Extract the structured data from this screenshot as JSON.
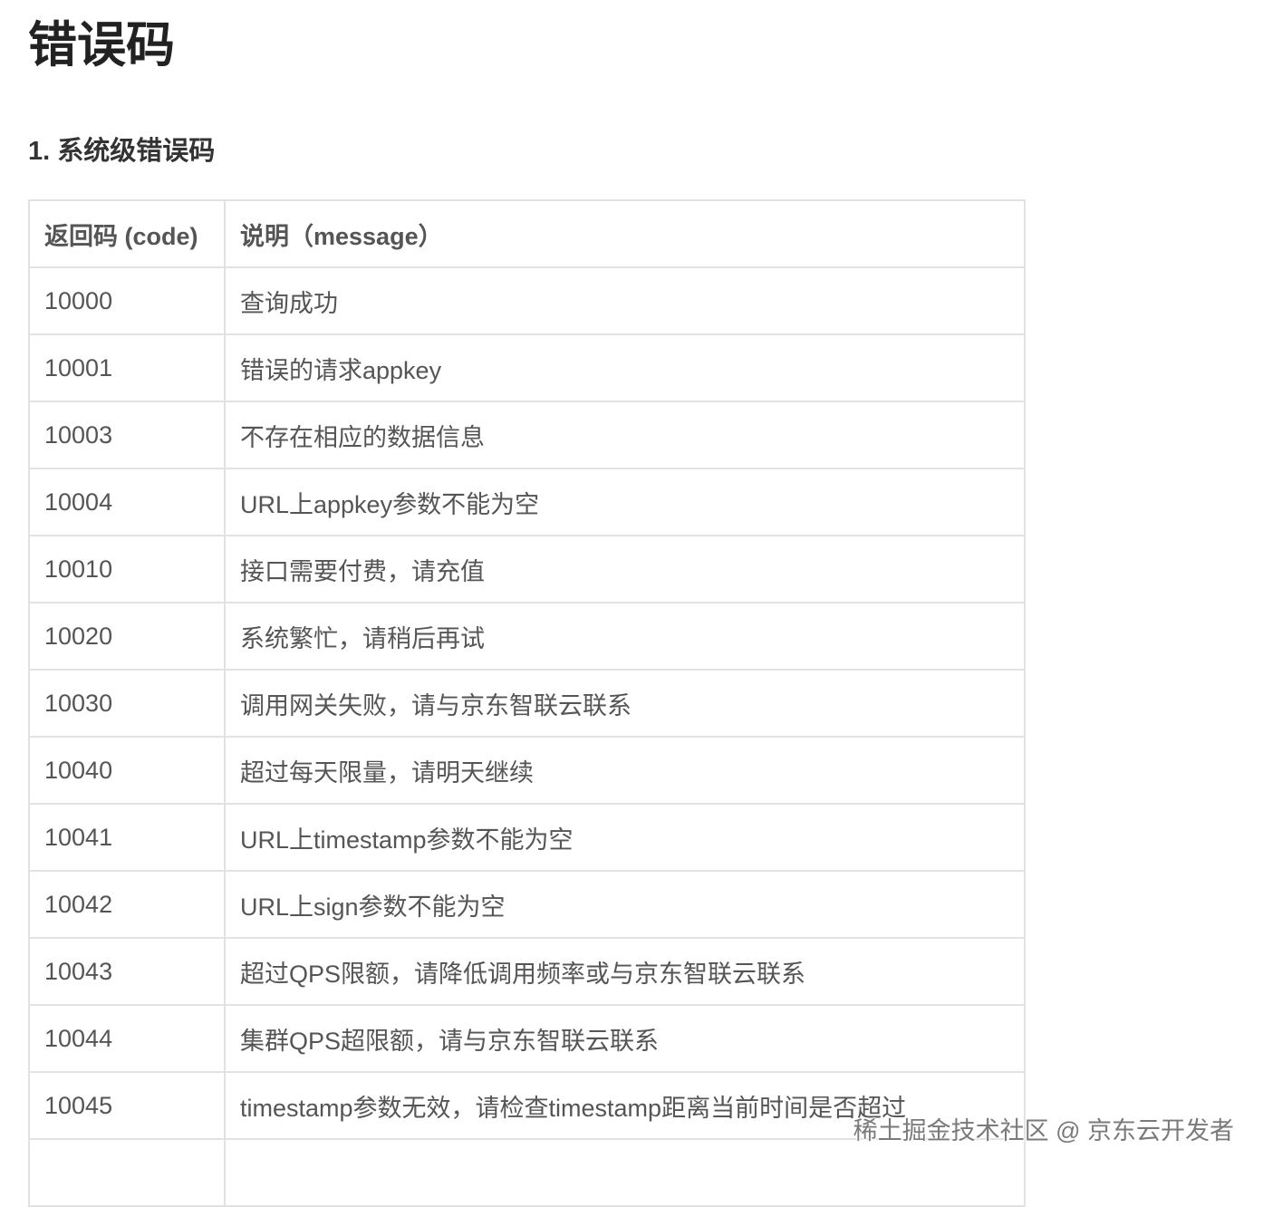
{
  "title": "错误码",
  "section_title": "1. 系统级错误码",
  "table": {
    "headers": [
      "返回码 (code)",
      "说明（message）"
    ],
    "rows": [
      {
        "code": "10000",
        "message": "查询成功"
      },
      {
        "code": "10001",
        "message": "错误的请求appkey"
      },
      {
        "code": "10003",
        "message": "不存在相应的数据信息"
      },
      {
        "code": "10004",
        "message": "URL上appkey参数不能为空"
      },
      {
        "code": "10010",
        "message": "接口需要付费，请充值"
      },
      {
        "code": "10020",
        "message": "系统繁忙，请稍后再试"
      },
      {
        "code": "10030",
        "message": "调用网关失败，请与京东智联云联系"
      },
      {
        "code": "10040",
        "message": "超过每天限量，请明天继续"
      },
      {
        "code": "10041",
        "message": "URL上timestamp参数不能为空"
      },
      {
        "code": "10042",
        "message": "URL上sign参数不能为空"
      },
      {
        "code": "10043",
        "message": "超过QPS限额，请降低调用频率或与京东智联云联系"
      },
      {
        "code": "10044",
        "message": "集群QPS超限额，请与京东智联云联系"
      },
      {
        "code": "10045",
        "message": "timestamp参数无效，请检查timestamp距离当前时间是否超过"
      }
    ]
  },
  "watermark": "稀土掘金技术社区 @ 京东云开发者"
}
